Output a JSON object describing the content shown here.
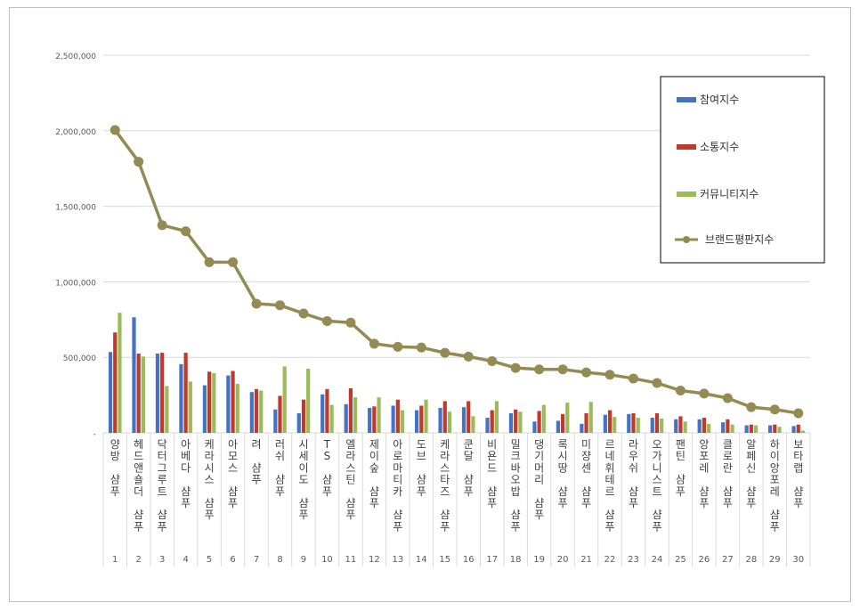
{
  "chart_data": {
    "type": "bar",
    "yticks": [
      "2,500,000",
      "2,000,000",
      "1,500,000",
      "1,000,000",
      "500,000",
      "-"
    ],
    "ylim": [
      0,
      2500000
    ],
    "grid": true,
    "legend_position": "top-right",
    "categories": [
      "양방 샴푸",
      "헤드앤숄더 샴푸",
      "닥터그루트 샴푸",
      "아베다 샴푸",
      "케라시스 샴푸",
      "아모스 샴푸",
      "려 샴푸",
      "러쉬 샴푸",
      "시세이도 샴푸",
      "TS 샴푸",
      "엘라스틴 샴푸",
      "제이숲 샴푸",
      "아로마티카 샴푸",
      "도브 샴푸",
      "케라스타즈 샴푸",
      "쿤달 샴푸",
      "비욘드 샴푸",
      "밀크바오밥 샴푸",
      "댕기머리 샴푸",
      "록시땅 샴푸",
      "미쟝센 샴푸",
      "르네휘테르 샴푸",
      "라우쉬 샴푸",
      "오가니스트 샴푸",
      "팬틴 샴푸",
      "앙포레 샴푸",
      "클로란 샴푸",
      "알페신 샴푸",
      "하이앙포레 샴푸",
      "보타랩 샴푸"
    ],
    "ranks": [
      "1",
      "2",
      "3",
      "4",
      "5",
      "6",
      "7",
      "8",
      "9",
      "10",
      "11",
      "12",
      "13",
      "14",
      "15",
      "16",
      "17",
      "18",
      "19",
      "20",
      "21",
      "22",
      "23",
      "24",
      "25",
      "26",
      "27",
      "28",
      "29",
      "30"
    ],
    "series": [
      {
        "name": "참여지수",
        "type": "bar",
        "color": "#4472C4",
        "values": [
          535000,
          765000,
          525000,
          455000,
          315000,
          380000,
          270000,
          155000,
          130000,
          255000,
          190000,
          165000,
          180000,
          150000,
          165000,
          170000,
          100000,
          130000,
          75000,
          80000,
          60000,
          120000,
          125000,
          100000,
          90000,
          90000,
          70000,
          50000,
          50000,
          45000
        ]
      },
      {
        "name": "소통지수",
        "type": "bar",
        "color": "#C0392B",
        "values": [
          665000,
          525000,
          530000,
          530000,
          405000,
          410000,
          290000,
          245000,
          220000,
          290000,
          295000,
          175000,
          220000,
          180000,
          210000,
          210000,
          150000,
          155000,
          145000,
          125000,
          130000,
          150000,
          130000,
          130000,
          110000,
          100000,
          90000,
          55000,
          55000,
          55000
        ]
      },
      {
        "name": "커뮤니티지수",
        "type": "bar",
        "color": "#9BBB59",
        "values": [
          795000,
          505000,
          310000,
          340000,
          395000,
          325000,
          280000,
          440000,
          425000,
          185000,
          235000,
          235000,
          150000,
          220000,
          140000,
          110000,
          210000,
          140000,
          185000,
          200000,
          205000,
          105000,
          100000,
          95000,
          75000,
          60000,
          55000,
          50000,
          40000,
          15000
        ]
      },
      {
        "name": "브랜드평판지수",
        "type": "line",
        "color": "#948A54",
        "values": [
          2005000,
          1795000,
          1375000,
          1335000,
          1130000,
          1130000,
          855000,
          845000,
          790000,
          740000,
          730000,
          590000,
          570000,
          565000,
          530000,
          505000,
          475000,
          430000,
          420000,
          420000,
          400000,
          385000,
          360000,
          330000,
          280000,
          260000,
          230000,
          170000,
          155000,
          130000
        ]
      }
    ]
  }
}
